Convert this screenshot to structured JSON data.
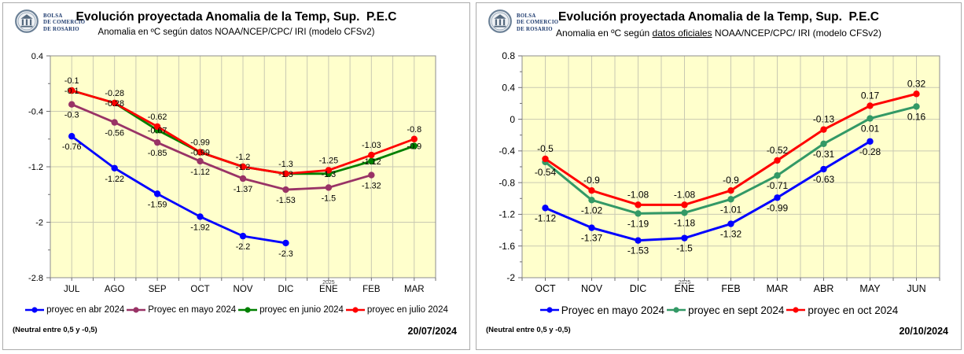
{
  "logo": {
    "lines": [
      "BOLSA",
      "DE COMERCIO",
      "DE ROSARIO"
    ]
  },
  "chart_data": [
    {
      "type": "line",
      "title": "Evolución proyectada Anomalia de la Temp, Sup.  P.E.C",
      "subtitle": {
        "prefix": "Anomalia en ºC según datos ",
        "underlined": "",
        "suffix": "NOAA/NCEP/CPC/ IRI (modelo CFSv2)"
      },
      "categories": [
        "JUL",
        "AGO",
        "SEP",
        "OCT",
        "NOV",
        "DIC",
        "ENE",
        "FEB",
        "MAR"
      ],
      "year_break": {
        "index": 6,
        "label": "2025"
      },
      "ylim": [
        -2.8,
        0.4
      ],
      "yticks": [
        0.4,
        -0.4,
        -1.2,
        -2,
        -2.8
      ],
      "ytick_labels": [
        "0.4",
        "-0.4",
        "-1.2",
        "-2",
        "-2.8"
      ],
      "plot_bg": "#FFFFCC",
      "grid": true,
      "legend_position": "bottom",
      "series": [
        {
          "name": "proyec en abr 2024",
          "color": "#0000FF",
          "label_pos": "below",
          "values": [
            -0.76,
            -1.22,
            -1.59,
            -1.92,
            -2.2,
            -2.3,
            null,
            null,
            null
          ]
        },
        {
          "name": "Proyec en mayo 2024",
          "color": "#993366",
          "label_pos": "below",
          "values": [
            -0.3,
            -0.56,
            -0.85,
            -1.12,
            -1.37,
            -1.53,
            -1.5,
            -1.32,
            null
          ]
        },
        {
          "name": "proyec en  junio 2024",
          "color": "#008000",
          "label_pos": "center",
          "values": [
            -0.1,
            -0.28,
            -0.67,
            -0.99,
            -1.2,
            -1.3,
            -1.3,
            -1.12,
            -0.9
          ]
        },
        {
          "name": "proyec en julio 2024",
          "color": "#FF0000",
          "label_pos": "above",
          "values": [
            -0.1,
            -0.28,
            -0.62,
            -0.99,
            -1.2,
            -1.3,
            -1.25,
            -1.03,
            -0.8
          ]
        }
      ],
      "note": "(Neutral entre 0,5 y -0,5)",
      "date": "20/07/2024"
    },
    {
      "type": "line",
      "title": "Evolución proyectada Anomalia de la Temp, Sup.  P.E.C",
      "subtitle": {
        "prefix": "Anomalia en ºC según ",
        "underlined": "datos oficiales",
        "suffix": " NOAA/NCEP/CPC/ IRI (modelo CFSv2)"
      },
      "categories": [
        "OCT",
        "NOV",
        "DIC",
        "ENE",
        "FEB",
        "MAR",
        "ABR",
        "MAY",
        "JUN"
      ],
      "year_break": {
        "index": 3,
        "label": "2025"
      },
      "ylim": [
        -2,
        0.8
      ],
      "yticks": [
        0.8,
        0.4,
        0,
        -0.4,
        -0.8,
        -1.2,
        -1.6,
        -2
      ],
      "ytick_labels": [
        "0.8",
        "0.4",
        "0",
        "-0.4",
        "-0.8",
        "-1.2",
        "-1.6",
        "-2"
      ],
      "plot_bg": "#FFFFCC",
      "grid": true,
      "legend_position": "bottom",
      "series": [
        {
          "name": "Proyec en mayo 2024",
          "color": "#0000FF",
          "label_pos": "below",
          "values": [
            -1.12,
            -1.37,
            -1.53,
            -1.5,
            -1.32,
            -0.99,
            -0.63,
            -0.28,
            null
          ]
        },
        {
          "name": "proyec en sept 2024",
          "color": "#339966",
          "label_pos": "below",
          "values": [
            -0.54,
            -1.02,
            -1.19,
            -1.18,
            -1.01,
            -0.71,
            -0.31,
            0.01,
            0.16
          ]
        },
        {
          "name": "proyec en oct 2024",
          "color": "#FF0000",
          "label_pos": "above",
          "values": [
            -0.5,
            -0.9,
            -1.08,
            -1.08,
            -0.9,
            -0.52,
            -0.13,
            0.17,
            0.32
          ]
        }
      ],
      "note": "(Neutral entre 0,5 y -0,5)",
      "date": "20/10/2024"
    }
  ]
}
